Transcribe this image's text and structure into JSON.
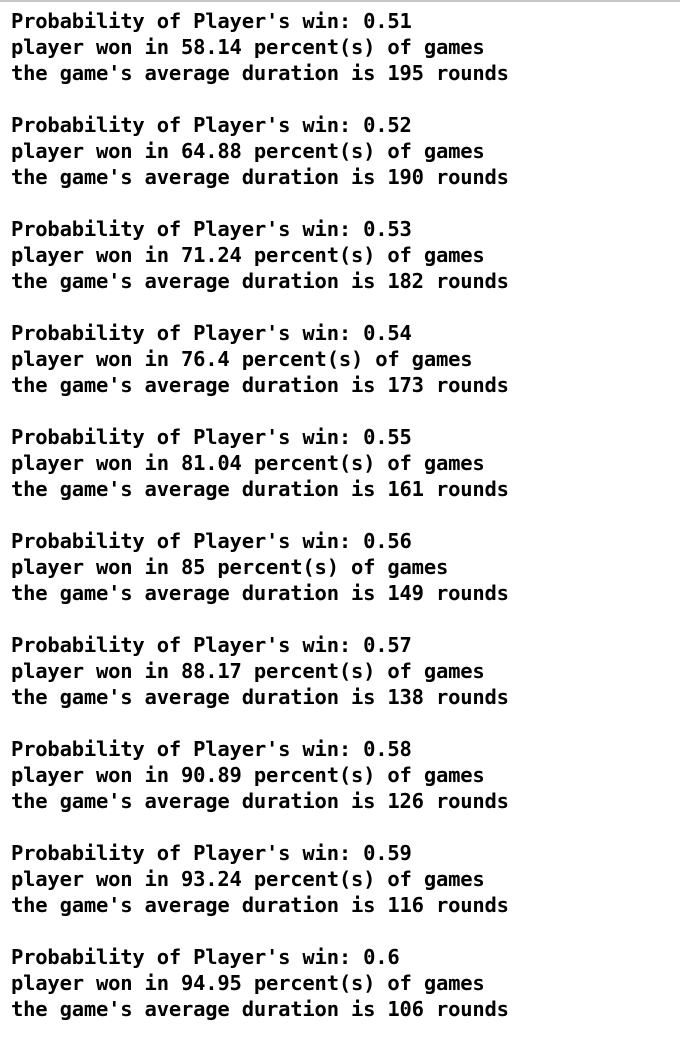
{
  "console": {
    "blocks": [
      {
        "probability": "Probability of Player's win: 0.51",
        "won": "player won in 58.14 percent(s) of games",
        "duration": "the game's average duration is 195 rounds"
      },
      {
        "probability": "Probability of Player's win: 0.52",
        "won": "player won in 64.88 percent(s) of games",
        "duration": "the game's average duration is 190 rounds"
      },
      {
        "probability": "Probability of Player's win: 0.53",
        "won": "player won in 71.24 percent(s) of games",
        "duration": "the game's average duration is 182 rounds"
      },
      {
        "probability": "Probability of Player's win: 0.54",
        "won": "player won in 76.4 percent(s) of games",
        "duration": "the game's average duration is 173 rounds"
      },
      {
        "probability": "Probability of Player's win: 0.55",
        "won": "player won in 81.04 percent(s) of games",
        "duration": "the game's average duration is 161 rounds"
      },
      {
        "probability": "Probability of Player's win: 0.56",
        "won": "player won in 85 percent(s) of games",
        "duration": "the game's average duration is 149 rounds"
      },
      {
        "probability": "Probability of Player's win: 0.57",
        "won": "player won in 88.17 percent(s) of games",
        "duration": "the game's average duration is 138 rounds"
      },
      {
        "probability": "Probability of Player's win: 0.58",
        "won": "player won in 90.89 percent(s) of games",
        "duration": "the game's average duration is 126 rounds"
      },
      {
        "probability": "Probability of Player's win: 0.59",
        "won": "player won in 93.24 percent(s) of games",
        "duration": "the game's average duration is 116 rounds"
      },
      {
        "probability": "Probability of Player's win: 0.6",
        "won": "player won in 94.95 percent(s) of games",
        "duration": "the game's average duration is 106 rounds"
      }
    ]
  }
}
